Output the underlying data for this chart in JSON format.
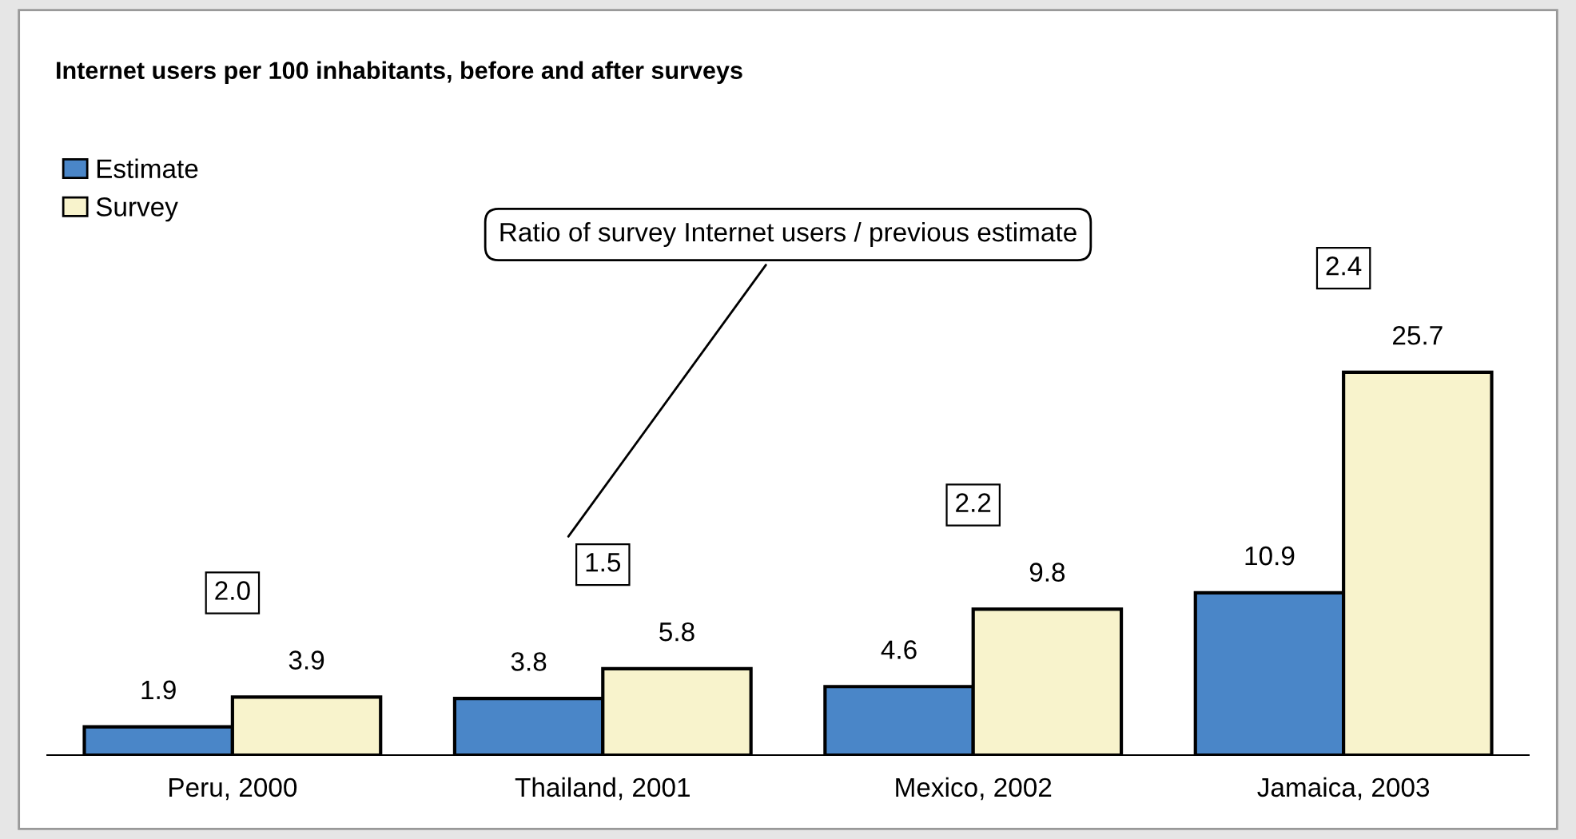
{
  "chart_data": {
    "type": "bar",
    "title": "Internet users per 100 inhabitants, before and after surveys",
    "categories": [
      "Peru, 2000",
      "Thailand, 2001",
      "Mexico, 2002",
      "Jamaica, 2003"
    ],
    "series": [
      {
        "name": "Estimate",
        "color": "#4a86c8",
        "values": [
          1.9,
          3.8,
          4.6,
          10.9
        ]
      },
      {
        "name": "Survey",
        "color": "#f8f3cc",
        "values": [
          3.9,
          5.8,
          9.8,
          25.7
        ]
      }
    ],
    "data_labels": true,
    "annotations": [
      "Ratio of survey Internet users / previous estimate",
      "2.0",
      "1.5",
      "2.2",
      "2.4"
    ],
    "legend": "top left",
    "grid": false
  }
}
